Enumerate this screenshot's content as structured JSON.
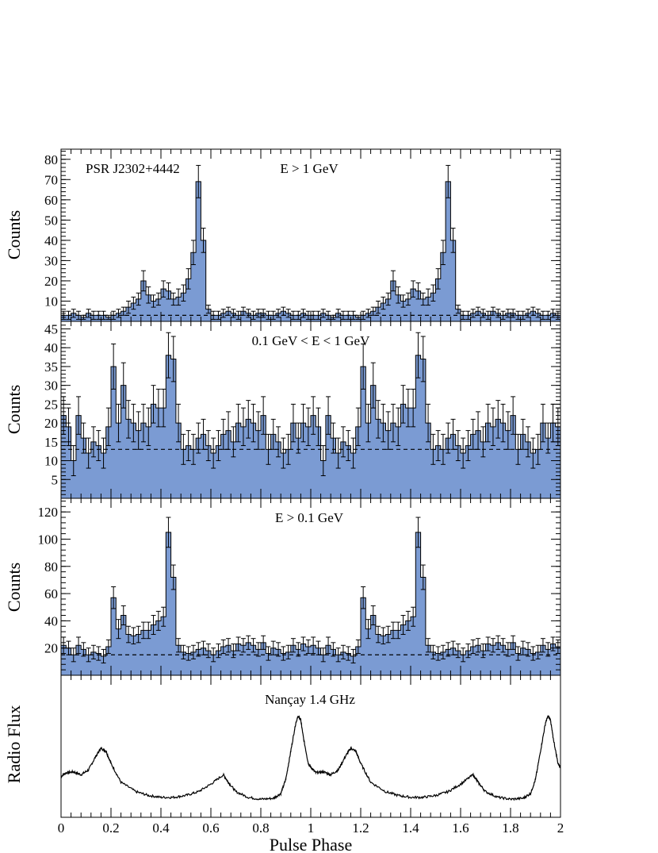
{
  "colors": {
    "fill": "#7b9bd3",
    "line": "#000000",
    "baseline": "#000000"
  },
  "chart_data": [
    {
      "type": "bar",
      "panel": "hist",
      "source": "PSR J2302+4442",
      "label": "E > 1 GeV",
      "ylabel": "Counts",
      "ylim": [
        0,
        85
      ],
      "yticks": [
        10,
        20,
        30,
        40,
        50,
        60,
        70,
        80
      ],
      "baseline": 3,
      "x_range": [
        0,
        2
      ],
      "bins": 50,
      "values": [
        3,
        3,
        4,
        3,
        2,
        4,
        3,
        3,
        3,
        2,
        3,
        4,
        5,
        7,
        9,
        11,
        20,
        13,
        10,
        11,
        16,
        15,
        11,
        12,
        14,
        21,
        34,
        69,
        40,
        6,
        3,
        3,
        4,
        5,
        4,
        3,
        5,
        4,
        3,
        4,
        4,
        3,
        3,
        4,
        5,
        4,
        3,
        3,
        4,
        3
      ],
      "errors": [
        2,
        2,
        2,
        2,
        1,
        2,
        2,
        2,
        2,
        1,
        2,
        2,
        2,
        3,
        3,
        3,
        5,
        4,
        3,
        3,
        4,
        4,
        3,
        4,
        4,
        5,
        6,
        8,
        6,
        2,
        2,
        2,
        2,
        2,
        2,
        2,
        2,
        2,
        2,
        2,
        2,
        2,
        2,
        2,
        2,
        2,
        2,
        2,
        2,
        2
      ]
    },
    {
      "type": "bar",
      "panel": "hist",
      "label": "0.1 GeV < E < 1 GeV",
      "ylabel": "Counts",
      "ylim": [
        0,
        47
      ],
      "yticks": [
        5,
        10,
        15,
        20,
        25,
        30,
        35,
        40,
        45
      ],
      "baseline": 13,
      "x_range": [
        0,
        2
      ],
      "bins": 50,
      "values": [
        22,
        19,
        10,
        22,
        16,
        12,
        15,
        14,
        12,
        19,
        35,
        20,
        30,
        21,
        20,
        18,
        20,
        19,
        25,
        24,
        24,
        38,
        37,
        20,
        13,
        14,
        13,
        16,
        17,
        14,
        12,
        14,
        17,
        18,
        15,
        20,
        19,
        21,
        20,
        18,
        22,
        13,
        17,
        15,
        12,
        13,
        20,
        16,
        20,
        19
      ],
      "errors": [
        5,
        5,
        4,
        5,
        4,
        4,
        4,
        4,
        4,
        5,
        6,
        5,
        6,
        5,
        5,
        5,
        5,
        5,
        5,
        5,
        5,
        6,
        6,
        5,
        4,
        4,
        4,
        4,
        4,
        4,
        4,
        4,
        4,
        5,
        4,
        5,
        5,
        5,
        5,
        5,
        5,
        4,
        4,
        4,
        4,
        4,
        5,
        4,
        5,
        5
      ]
    },
    {
      "type": "bar",
      "panel": "hist",
      "label": "E > 0.1 GeV",
      "ylabel": "Counts",
      "ylim": [
        0,
        130
      ],
      "yticks": [
        20,
        40,
        60,
        80,
        100,
        120
      ],
      "baseline": 15,
      "x_range": [
        0,
        2
      ],
      "bins": 50,
      "values": [
        22,
        20,
        15,
        22,
        19,
        15,
        17,
        16,
        14,
        21,
        57,
        34,
        44,
        30,
        29,
        30,
        33,
        33,
        37,
        40,
        43,
        105,
        72,
        22,
        17,
        16,
        17,
        19,
        20,
        18,
        15,
        18,
        21,
        22,
        18,
        23,
        22,
        24,
        22,
        19,
        24,
        16,
        20,
        19,
        16,
        17,
        22,
        19,
        23,
        21
      ],
      "errors": [
        6,
        5,
        5,
        6,
        5,
        5,
        5,
        5,
        5,
        5,
        8,
        7,
        7,
        6,
        6,
        6,
        6,
        6,
        7,
        7,
        7,
        11,
        9,
        5,
        5,
        5,
        5,
        5,
        5,
        5,
        5,
        5,
        5,
        5,
        5,
        5,
        5,
        5,
        5,
        5,
        5,
        5,
        5,
        5,
        5,
        5,
        5,
        5,
        5,
        5
      ]
    },
    {
      "type": "line",
      "panel": "radio",
      "label": "Nançay 1.4 GHz",
      "ylabel": "Radio Flux",
      "xlabel": "Pulse Phase",
      "x_range": [
        0,
        2
      ],
      "xticks": [
        0,
        0.2,
        0.4,
        0.6,
        0.8,
        1,
        1.2,
        1.4,
        1.6,
        1.8,
        2
      ],
      "xtick_labels": [
        "0",
        "0.2",
        "0.4",
        "0.6",
        "0.8",
        "1",
        "1.2",
        "1.4",
        "1.6",
        "1.8",
        "2"
      ],
      "x": [
        0,
        0.02,
        0.05,
        0.08,
        0.11,
        0.14,
        0.16,
        0.18,
        0.2,
        0.24,
        0.3,
        0.35,
        0.4,
        0.45,
        0.5,
        0.55,
        0.6,
        0.65,
        0.67,
        0.7,
        0.75,
        0.8,
        0.85,
        0.88,
        0.9,
        0.92,
        0.94,
        0.95,
        0.96,
        0.97,
        0.99,
        1
      ],
      "y": [
        0.28,
        0.32,
        0.33,
        0.3,
        0.35,
        0.5,
        0.58,
        0.55,
        0.42,
        0.22,
        0.12,
        0.08,
        0.06,
        0.06,
        0.08,
        0.12,
        0.2,
        0.3,
        0.22,
        0.12,
        0.06,
        0.04,
        0.05,
        0.1,
        0.25,
        0.55,
        0.85,
        0.92,
        0.88,
        0.7,
        0.42,
        0.38
      ]
    }
  ]
}
